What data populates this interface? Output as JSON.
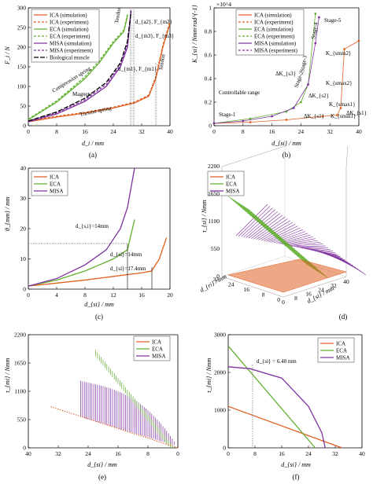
{
  "colors": {
    "ica": "#e06020",
    "eca": "#60b030",
    "misa": "#8030a0",
    "bio": "#000000"
  },
  "chart_data": [
    {
      "id": "a",
      "type": "line",
      "caption": "(a)",
      "xlabel": "d_i / mm",
      "ylabel": "F_i / N",
      "xlim": [
        0,
        40
      ],
      "ylim": [
        0,
        300
      ],
      "xticks": [
        0,
        8,
        16,
        24,
        32,
        40
      ],
      "yticks": [
        0,
        50,
        100,
        150,
        200,
        250,
        300
      ],
      "legend": [
        "ICA (simulation)",
        "ICA (experiment)",
        "ECA (simulation)",
        "ECA (experiment)",
        "MISA (simulation)",
        "MISA (experiment)",
        "Biological muscle"
      ],
      "series": [
        {
          "name": "ICA (simulation)",
          "color": "#e06020",
          "dash": "",
          "x": [
            0,
            8,
            16,
            24,
            30,
            34,
            36,
            38,
            40
          ],
          "y": [
            10,
            22,
            32,
            45,
            58,
            75,
            120,
            200,
            260
          ]
        },
        {
          "name": "ICA (experiment)",
          "color": "#e06020",
          "dash": "3,2",
          "x": [
            0,
            8,
            16,
            24,
            30,
            34,
            36,
            38,
            40
          ],
          "y": [
            12,
            24,
            34,
            47,
            60,
            78,
            125,
            205,
            265
          ]
        },
        {
          "name": "ECA (simulation)",
          "color": "#60b030",
          "dash": "",
          "x": [
            0,
            8,
            16,
            20,
            24,
            27,
            28
          ],
          "y": [
            15,
            60,
            120,
            160,
            210,
            240,
            280
          ]
        },
        {
          "name": "ECA (experiment)",
          "color": "#60b030",
          "dash": "3,2",
          "x": [
            0,
            8,
            16,
            20,
            24,
            27,
            28
          ],
          "y": [
            17,
            63,
            125,
            165,
            214,
            244,
            284
          ]
        },
        {
          "name": "MISA (simulation)",
          "color": "#8030a0",
          "dash": "",
          "x": [
            0,
            8,
            16,
            22,
            26,
            28,
            29
          ],
          "y": [
            10,
            30,
            62,
            100,
            150,
            200,
            290
          ]
        },
        {
          "name": "MISA (experiment)",
          "color": "#8030a0",
          "dash": "3,2",
          "x": [
            0,
            8,
            16,
            22,
            26,
            28,
            29
          ],
          "y": [
            12,
            33,
            66,
            105,
            155,
            206,
            294
          ]
        },
        {
          "name": "Biological muscle",
          "color": "#000000",
          "dash": "6,2",
          "x": [
            0,
            8,
            16,
            22,
            26,
            28,
            29
          ],
          "y": [
            12,
            35,
            70,
            110,
            160,
            215,
            290
          ]
        }
      ],
      "annotations": [
        "Tendon",
        "Tendon",
        "Compression spring",
        "Magnets",
        "Torsion spring",
        "d_{a2}, F_{m2}",
        "d_{m3}, F_{m3}",
        "d_{m1}, F_{m1}"
      ]
    },
    {
      "id": "b",
      "type": "scatter",
      "caption": "(b)",
      "xlabel": "d_{si} / mm",
      "ylabel": "K_{si} / Nmm·rad^{-1}",
      "xlim": [
        0,
        40
      ],
      "ylim": [
        0,
        1.0
      ],
      "yscale_label": "×10^4",
      "xticks": [
        0,
        8,
        16,
        24,
        32,
        40
      ],
      "yticks": [
        0,
        0.2,
        0.4,
        0.6,
        0.8,
        1.0
      ],
      "legend": [
        "ICA (simulation)",
        "ICA (experiment)",
        "ECA (simulation)",
        "ECA (experiment)",
        "MISA (simulation)",
        "MISA (experiment)"
      ],
      "series": [
        {
          "name": "ICA (simulation)",
          "color": "#e06020",
          "x": [
            0,
            10,
            20,
            30,
            34,
            35,
            36,
            40
          ],
          "y": [
            0.02,
            0.03,
            0.05,
            0.08,
            0.09,
            0.15,
            0.65,
            0.72
          ]
        },
        {
          "name": "ECA (simulation)",
          "color": "#60b030",
          "x": [
            0,
            10,
            20,
            24,
            26,
            28
          ],
          "y": [
            0.02,
            0.06,
            0.12,
            0.2,
            0.35,
            0.95
          ]
        },
        {
          "name": "MISA (simulation)",
          "color": "#8030a0",
          "x": [
            0,
            8,
            16,
            22,
            26,
            28,
            29
          ],
          "y": [
            0.02,
            0.04,
            0.08,
            0.15,
            0.35,
            0.7,
            0.92
          ]
        }
      ],
      "annotations": [
        "Stage-5",
        "Stage-4",
        "Stage-3",
        "Stage-2",
        "Stage-1",
        "Controllable range",
        "K_{smin2}",
        "K_{smax2}",
        "K_{smax1}",
        "K_{smin1}",
        "ΔK_{s3}",
        "ΔK_{s2}",
        "ΔK_{s1}",
        "ΔK_{s1}"
      ]
    },
    {
      "id": "c",
      "type": "line",
      "caption": "(c)",
      "xlabel": "d_{si} / mm",
      "ylabel": "θ_{mm} / mm",
      "xlim": [
        0,
        20
      ],
      "ylim": [
        0,
        40
      ],
      "xticks": [
        0,
        4,
        8,
        12,
        16,
        20
      ],
      "yticks": [
        0,
        10,
        20,
        30,
        40
      ],
      "legend": [
        "ICA",
        "ECA",
        "MISA"
      ],
      "series": [
        {
          "name": "ICA",
          "color": "#e06020",
          "x": [
            0,
            4,
            8,
            12,
            16,
            17.4,
            18.5,
            19.5
          ],
          "y": [
            1,
            2,
            3,
            4.2,
            5.4,
            6,
            10,
            17
          ]
        },
        {
          "name": "ECA",
          "color": "#60b030",
          "x": [
            0,
            4,
            8,
            12,
            14,
            15
          ],
          "y": [
            1,
            3,
            6,
            10,
            13,
            23
          ]
        },
        {
          "name": "MISA",
          "color": "#8030a0",
          "x": [
            0,
            4,
            8,
            11,
            13,
            14,
            15
          ],
          "y": [
            1,
            3.5,
            8,
            13,
            20,
            27,
            40
          ]
        }
      ],
      "annotations": [
        "d_{s,i}=14mm",
        "d_{si}=14mm",
        "d_{si}=17.4mm"
      ]
    },
    {
      "id": "d",
      "type": "surface",
      "caption": "(d)",
      "xlabel": "d_{si} / mm",
      "ylabel": "d_{ri} / mm",
      "zlabel": "τ_{si} / Nmm",
      "zticks": [
        0,
        550,
        1100,
        1650,
        2200
      ],
      "xticks": [
        0,
        8,
        16,
        24,
        32,
        40
      ],
      "yticks": [
        0,
        8,
        16,
        24,
        32
      ],
      "legend": [
        "ICA",
        "ECA",
        "MISA"
      ]
    },
    {
      "id": "e",
      "type": "scatter",
      "caption": "(e)",
      "xlabel": "d_{si} / mm",
      "ylabel": "τ_{mi} / Nmm",
      "xlim": [
        40,
        0
      ],
      "ylim": [
        0,
        2200
      ],
      "xticks": [
        40,
        32,
        24,
        16,
        8,
        0
      ],
      "yticks": [
        0,
        550,
        1100,
        1650,
        2200
      ],
      "legend": [
        "ICA",
        "ECA",
        "MISA"
      ]
    },
    {
      "id": "f",
      "type": "line",
      "caption": "(f)",
      "xlabel": "d_{si} / mm",
      "ylabel": "τ_{mi} / Nmm",
      "xlim": [
        0,
        40
      ],
      "ylim": [
        0,
        3000
      ],
      "xticks": [
        0,
        8,
        16,
        24,
        32,
        40
      ],
      "yticks": [
        0,
        1000,
        2000,
        3000
      ],
      "legend": [
        "ICA",
        "ECA",
        "MISA"
      ],
      "series": [
        {
          "name": "ICA",
          "color": "#e06020",
          "x": [
            0,
            34
          ],
          "y": [
            1100,
            0
          ]
        },
        {
          "name": "ECA",
          "color": "#60b030",
          "x": [
            0,
            26
          ],
          "y": [
            2700,
            0
          ]
        },
        {
          "name": "MISA",
          "color": "#8030a0",
          "x": [
            0,
            6.48,
            16,
            24,
            28,
            29
          ],
          "y": [
            2150,
            2100,
            1850,
            1100,
            400,
            0
          ]
        }
      ],
      "annotations": [
        "d_{si} = 6.48 mm"
      ]
    }
  ]
}
